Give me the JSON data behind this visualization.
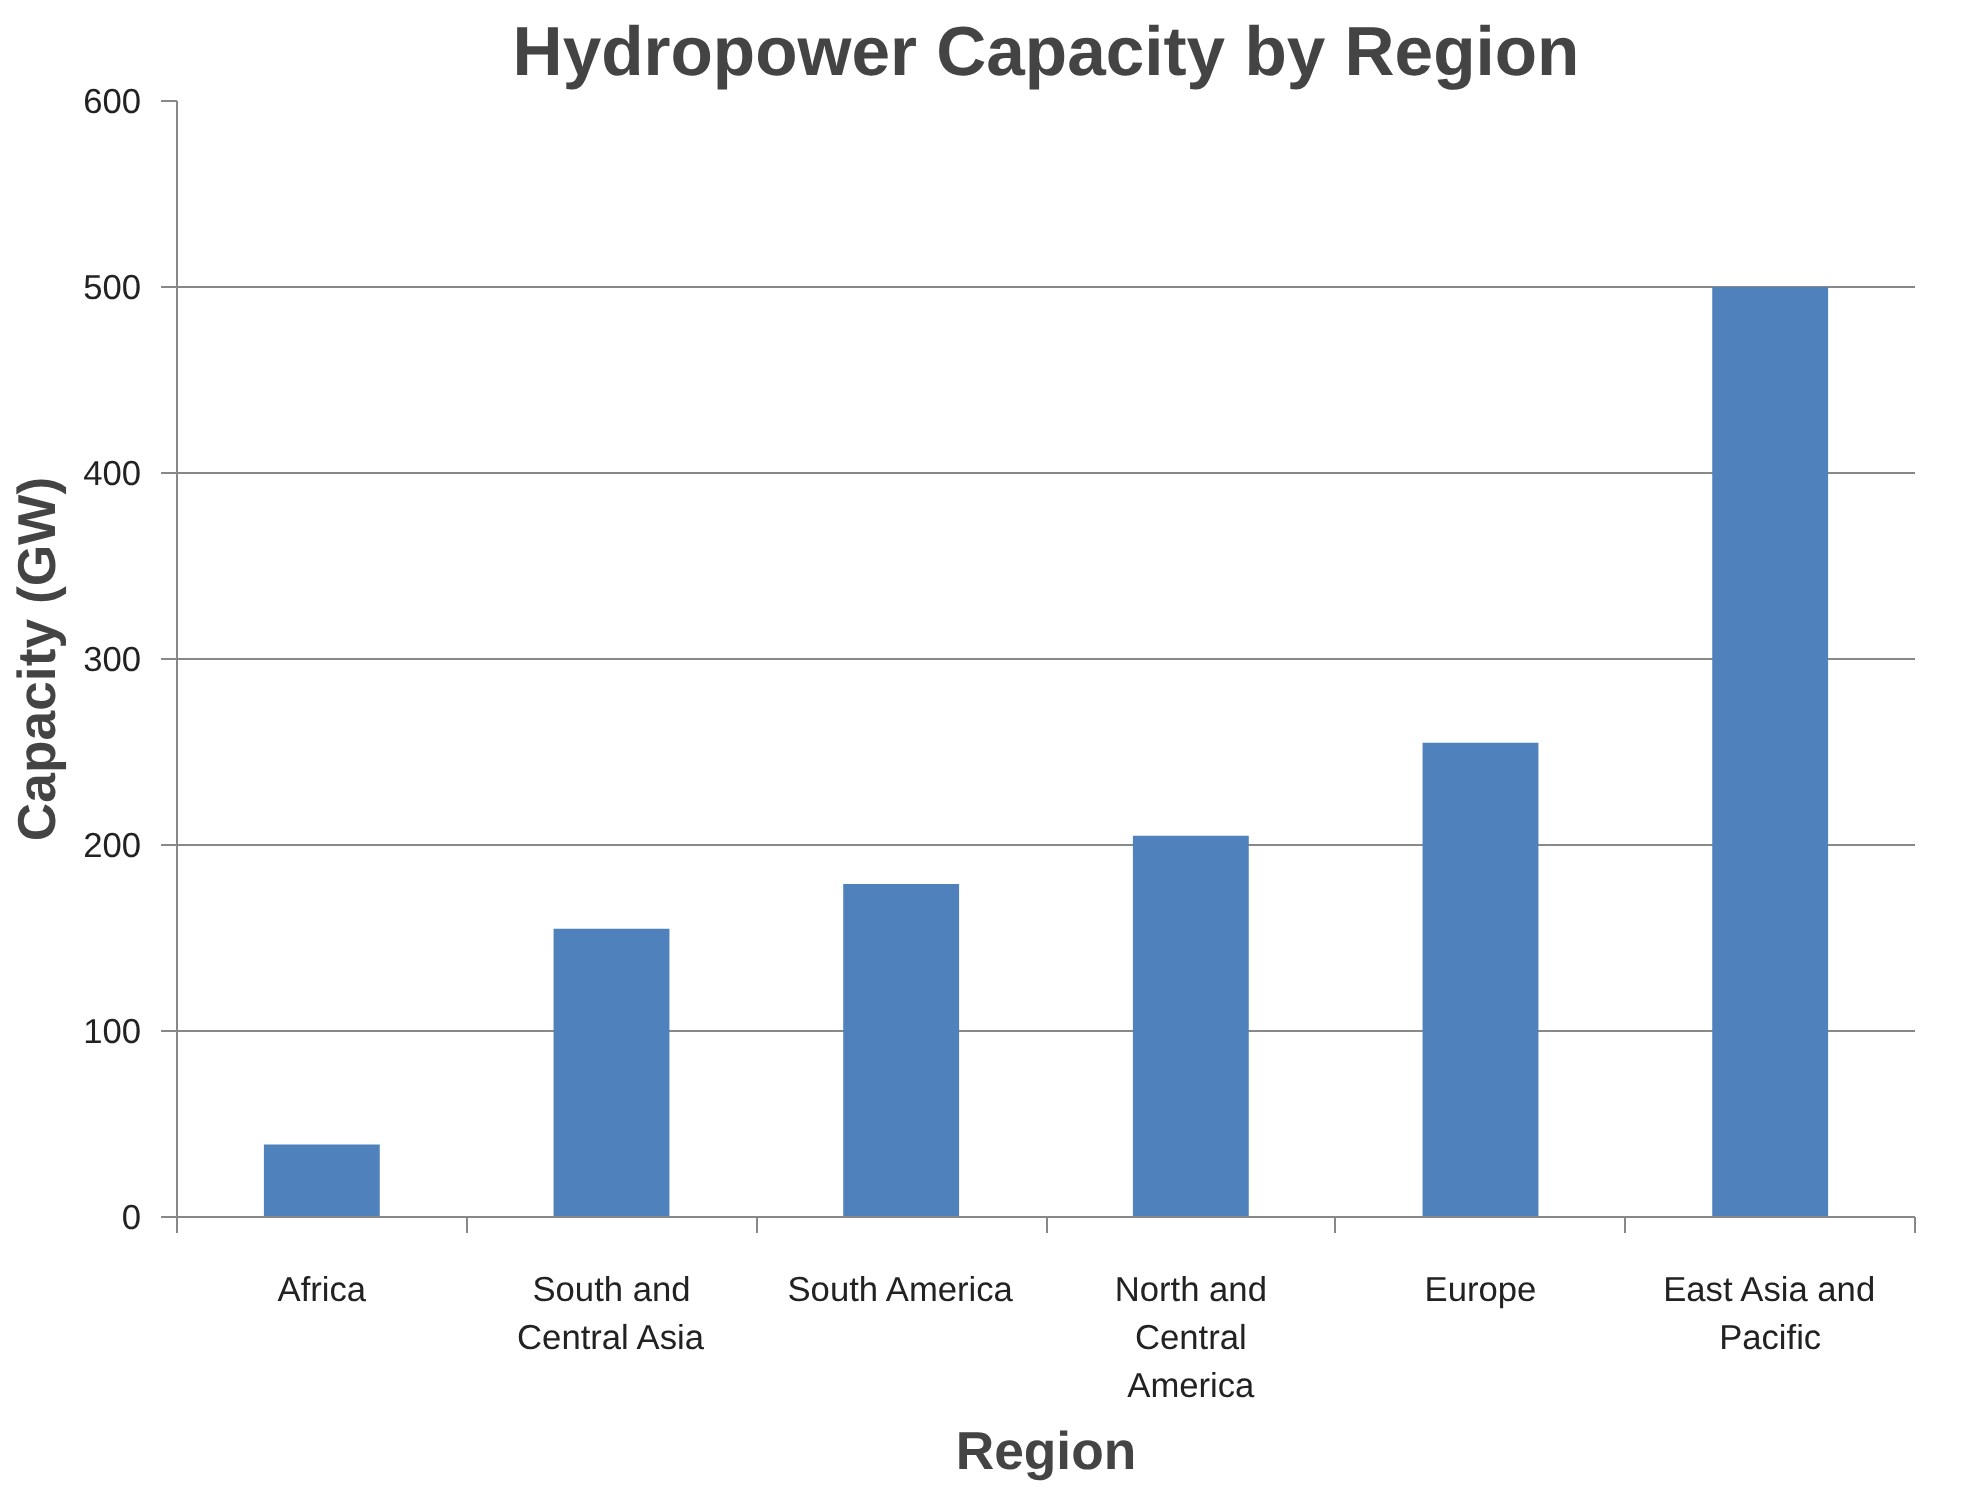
{
  "chart_data": {
    "type": "bar",
    "title": "Hydropower Capacity by Region",
    "xlabel": "Region",
    "ylabel": "Capacity (GW)",
    "categories": [
      "Africa",
      "South and Central Asia",
      "South America",
      "North and Central America",
      "Europe",
      "East Asia and Pacific"
    ],
    "values": [
      39,
      155,
      179,
      205,
      255,
      500
    ],
    "color": "#4f81bd",
    "ylim": [
      0,
      600
    ],
    "yticks": [
      0,
      100,
      200,
      300,
      400,
      500,
      600
    ],
    "grid": "y"
  }
}
